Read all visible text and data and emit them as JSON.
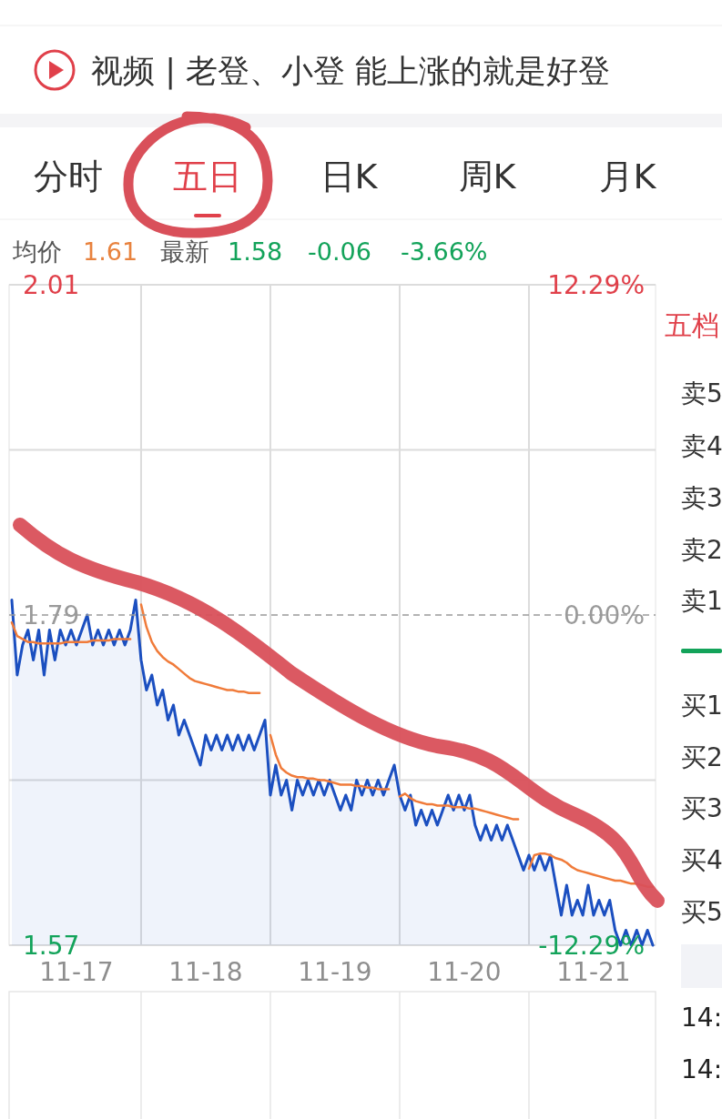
{
  "chart_data": {
    "type": "area",
    "title": "视频 | 老登、小登 能上涨的就是好登",
    "annotations": [
      "分时",
      "五日",
      "日K",
      "周K",
      "月K",
      "均价",
      "1.61",
      "最新",
      "1.58",
      "-0.06",
      "-3.66%",
      "五档",
      "卖5",
      "卖4",
      "卖3",
      "卖2",
      "卖1",
      "买1",
      "买2",
      "买3",
      "买4",
      "买5",
      "14:",
      "14:"
    ],
    "categories": [
      null,
      null,
      null,
      null,
      null,
      null,
      null,
      null,
      null,
      null,
      null,
      null,
      "11-17",
      null,
      null,
      null,
      null,
      null,
      null,
      null,
      null,
      null,
      null,
      null,
      null,
      null,
      null,
      null,
      null,
      null,
      null,
      null,
      null,
      null,
      null,
      null,
      "11-18",
      null,
      null,
      null,
      null,
      null,
      null,
      null,
      null,
      null,
      null,
      null,
      null,
      null,
      null,
      null,
      null,
      null,
      null,
      null,
      null,
      null,
      null,
      null,
      "11-19",
      null,
      null,
      null,
      null,
      null,
      null,
      null,
      null,
      null,
      null,
      null,
      null,
      null,
      null,
      null,
      null,
      null,
      null,
      null,
      null,
      null,
      null,
      null,
      "11-20",
      null,
      null,
      null,
      null,
      null,
      null,
      null,
      null,
      null,
      null,
      null,
      null,
      null,
      null,
      null,
      null,
      null,
      null,
      null,
      null,
      null,
      null,
      null,
      "11-21",
      null,
      null,
      null,
      null,
      null,
      null,
      null,
      null,
      null,
      null,
      null
    ],
    "ylim": [
      1.57,
      2.01
    ],
    "yticks": [
      2.01,
      {
        "value": 1.9,
        "label": null
      },
      1.79,
      {
        "value": 1.68,
        "label": null
      },
      1.57
    ],
    "y2lim": [
      -12.29,
      12.29
    ],
    "y2ticks": [
      {
        "value": 12.29,
        "label": "12.29%"
      },
      {
        "value": 0,
        "label": "0.00%"
      },
      {
        "value": -12.29,
        "label": "-12.29%"
      }
    ],
    "grid": true,
    "ref_lines": [
      {
        "axis": "y",
        "value": 1.79,
        "color": "#9a9a9a",
        "line_style": "dashed"
      }
    ],
    "series": [
      {
        "color": "#1b4fc0",
        "values": [
          1.8,
          1.75,
          1.77,
          1.78,
          1.76,
          1.78,
          1.75,
          1.78,
          1.76,
          1.78,
          1.77,
          1.78,
          1.77,
          1.78,
          1.79,
          1.77,
          1.78,
          1.77,
          1.78,
          1.77,
          1.78,
          1.77,
          1.78,
          1.8,
          1.76,
          1.74,
          1.75,
          1.73,
          1.74,
          1.72,
          1.73,
          1.71,
          1.72,
          1.71,
          1.7,
          1.69,
          1.71,
          1.7,
          1.71,
          1.7,
          1.71,
          1.7,
          1.71,
          1.7,
          1.71,
          1.7,
          1.71,
          1.72,
          1.67,
          1.69,
          1.67,
          1.68,
          1.66,
          1.68,
          1.67,
          1.68,
          1.67,
          1.68,
          1.67,
          1.68,
          1.67,
          1.66,
          1.67,
          1.66,
          1.68,
          1.67,
          1.68,
          1.67,
          1.68,
          1.67,
          1.68,
          1.69,
          1.67,
          1.66,
          1.67,
          1.65,
          1.66,
          1.65,
          1.66,
          1.65,
          1.66,
          1.67,
          1.66,
          1.67,
          1.66,
          1.67,
          1.65,
          1.64,
          1.65,
          1.64,
          1.65,
          1.64,
          1.65,
          1.64,
          1.63,
          1.62,
          1.63,
          1.62,
          1.63,
          1.62,
          1.63,
          1.61,
          1.59,
          1.61,
          1.59,
          1.6,
          1.59,
          1.61,
          1.59,
          1.6,
          1.59,
          1.6,
          1.58,
          1.57,
          1.58,
          1.57,
          1.58,
          1.57,
          1.58,
          1.57
        ]
      },
      {
        "type": "line",
        "color": "#f07b3a",
        "values": [
          1.785,
          1.776,
          1.774,
          1.772,
          1.772,
          1.771,
          1.771,
          1.771,
          1.771,
          1.771,
          1.772,
          1.772,
          1.772,
          1.772,
          1.772,
          1.773,
          1.773,
          1.773,
          1.773,
          1.774,
          1.774,
          1.774,
          1.774,
          null,
          1.797,
          1.782,
          1.772,
          1.766,
          1.762,
          1.759,
          1.757,
          1.754,
          1.751,
          1.748,
          1.746,
          1.745,
          1.744,
          1.743,
          1.742,
          1.741,
          1.74,
          1.74,
          1.739,
          1.739,
          1.738,
          1.738,
          1.738,
          null,
          1.71,
          1.697,
          1.688,
          1.685,
          1.683,
          1.682,
          1.682,
          1.681,
          1.681,
          1.68,
          1.68,
          1.679,
          1.678,
          1.677,
          1.677,
          1.677,
          1.676,
          1.676,
          1.675,
          1.675,
          1.674,
          1.674,
          1.674,
          null,
          1.669,
          1.671,
          1.668,
          1.666,
          1.665,
          1.664,
          1.664,
          1.663,
          1.663,
          1.663,
          1.662,
          1.662,
          1.662,
          1.661,
          1.661,
          1.66,
          1.659,
          1.658,
          1.657,
          1.656,
          1.655,
          1.654,
          1.654,
          null,
          1.621,
          1.63,
          1.631,
          1.631,
          1.63,
          1.628,
          1.627,
          1.625,
          1.622,
          1.62,
          1.619,
          1.618,
          1.617,
          1.616,
          1.615,
          1.614,
          1.613,
          1.613,
          1.612,
          1.611,
          1.611,
          1.61,
          1.609,
          1.609
        ]
      }
    ]
  }
}
